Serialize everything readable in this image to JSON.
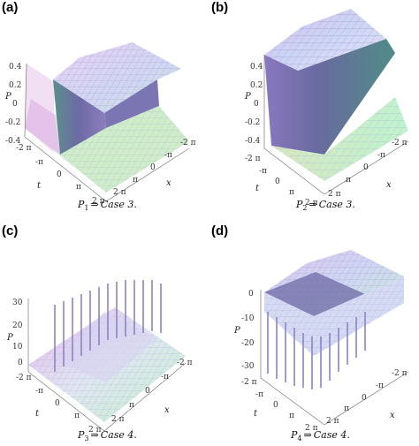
{
  "panels": [
    {
      "label": "(a)",
      "caption": {
        "p": "P",
        "sub": "1",
        "arrow": "⇒",
        "case": "Case 3."
      },
      "zticks": [
        "0.4",
        "0.2",
        "0",
        "-0.2",
        "-0.4"
      ],
      "zlabel": "P",
      "tticks": [
        "-2 π",
        "-π",
        "0",
        "π",
        "2 π"
      ],
      "xticks": [
        "-2 π",
        "-π",
        "0",
        "π",
        "2 π"
      ],
      "tlabel": "t",
      "xlabel": "x"
    },
    {
      "label": "(b)",
      "caption": {
        "p": "P",
        "sub": "2",
        "arrow": "⇒",
        "case": "Case 3."
      },
      "zticks": [
        "0.4",
        "0.2",
        "0",
        "-0.2",
        "-0.4"
      ],
      "zlabel": "P",
      "tticks": [
        "-2 π",
        "-π",
        "0",
        "π",
        "2 π"
      ],
      "xticks": [
        "-2 π",
        "-π",
        "0",
        "π",
        "2 π"
      ],
      "tlabel": "t",
      "xlabel": "x"
    },
    {
      "label": "(c)",
      "caption": {
        "p": "P",
        "sub": "3",
        "arrow": "⇒",
        "case": "Case 4."
      },
      "zticks": [
        "30",
        "20",
        "10",
        "0"
      ],
      "zlabel": "P",
      "tticks": [
        "-2 π",
        "-π",
        "0",
        "π",
        "2 π"
      ],
      "xticks": [
        "-2 π",
        "-π",
        "0",
        "π",
        "2 π"
      ],
      "tlabel": "t",
      "xlabel": "x"
    },
    {
      "label": "(d)",
      "caption": {
        "p": "P",
        "sub": "4",
        "arrow": "⇒",
        "case": "Case 4."
      },
      "zticks": [
        "0",
        "-10",
        "-20",
        "-30"
      ],
      "zlabel": "P",
      "tticks": [
        "-2 π",
        "-π",
        "0",
        "π",
        "2 π"
      ],
      "xticks": [
        "-2 π",
        "-π",
        "0",
        "π",
        "2 π"
      ],
      "tlabel": "t",
      "xlabel": "x"
    }
  ],
  "colors": {
    "surface_top": "#d8c8f2",
    "surface_left": "#e7b6e9",
    "surface_front": "#bff0c8",
    "wall": "#6f6fb0",
    "grid": "#8e8ec4"
  }
}
